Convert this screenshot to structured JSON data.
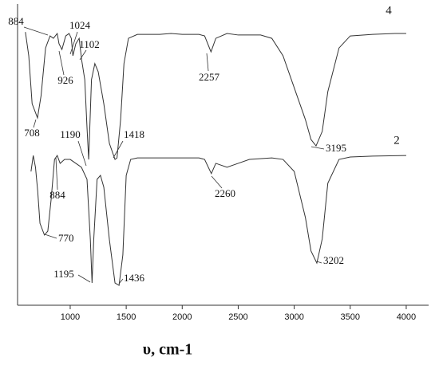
{
  "chart_data": {
    "type": "line",
    "x_label": "υ, cm-1",
    "xlim": [
      530,
      4200
    ],
    "xticks": [
      1000,
      1500,
      2000,
      2500,
      3000,
      3500,
      4000
    ],
    "ylim": [
      0,
      100
    ],
    "x": [
      600,
      630,
      660,
      708,
      740,
      780,
      820,
      850,
      884,
      900,
      926,
      960,
      990,
      1010,
      1024,
      1050,
      1080,
      1102,
      1130,
      1150,
      1165,
      1190,
      1220,
      1250,
      1300,
      1350,
      1400,
      1418,
      1450,
      1480,
      1520,
      1600,
      1800,
      1900,
      2000,
      2150,
      2200,
      2257,
      2300,
      2400,
      2500,
      2600,
      2700,
      2800,
      2900,
      3000,
      3100,
      3150,
      3195,
      3250,
      3300,
      3400,
      3500,
      3700,
      3900,
      4000
    ],
    "series": [
      {
        "name": "4",
        "color": "#333333",
        "values": [
          90.7,
          82.8,
          66.9,
          62.2,
          69.6,
          85.4,
          89.4,
          88.6,
          90.2,
          86.8,
          84.9,
          89.4,
          90.2,
          88.6,
          82.8,
          86.8,
          88.6,
          81.5,
          74.9,
          59.0,
          48.4,
          74.9,
          80.2,
          77.5,
          66.9,
          53.7,
          48.4,
          48.9,
          61.6,
          80.2,
          88.6,
          89.9,
          89.9,
          90.2,
          89.9,
          89.9,
          89.4,
          84.1,
          88.6,
          90.2,
          89.7,
          89.7,
          89.7,
          88.6,
          82.8,
          72.2,
          61.6,
          55.0,
          52.9,
          57.7,
          70.9,
          85.4,
          89.4,
          89.9,
          90.2,
          90.2
        ],
        "annotations": [
          "708",
          "884",
          "926",
          "1024",
          "1102",
          "1190",
          "1418",
          "2257",
          "3195"
        ]
      },
      {
        "name": "2",
        "color": "#333333",
        "x": [
          650,
          670,
          690,
          710,
          730,
          770,
          800,
          830,
          860,
          884,
          910,
          950,
          1000,
          1050,
          1100,
          1150,
          1180,
          1195,
          1210,
          1240,
          1270,
          1300,
          1350,
          1400,
          1436,
          1470,
          1500,
          1540,
          1600,
          1800,
          2000,
          2150,
          2200,
          2260,
          2300,
          2400,
          2500,
          2600,
          2800,
          2900,
          3000,
          3100,
          3150,
          3202,
          3250,
          3300,
          3400,
          3500,
          3700,
          4000
        ],
        "values": [
          44.4,
          49.7,
          45.8,
          37.8,
          27.2,
          23.3,
          24.6,
          35.2,
          48.4,
          49.7,
          47.1,
          48.4,
          48.4,
          47.1,
          45.8,
          41.8,
          21.7,
          7.4,
          21.7,
          41.8,
          43.1,
          39.2,
          21.7,
          7.4,
          6.6,
          16.7,
          43.1,
          48.4,
          48.9,
          48.9,
          48.9,
          48.9,
          48.4,
          43.7,
          47.1,
          45.8,
          47.1,
          48.4,
          48.9,
          48.4,
          44.4,
          29.1,
          18.0,
          14.0,
          22.0,
          40.5,
          48.4,
          49.2,
          49.5,
          49.7
        ],
        "annotations": [
          "770",
          "884",
          "1195",
          "1436",
          "2260",
          "3202"
        ]
      }
    ]
  }
}
